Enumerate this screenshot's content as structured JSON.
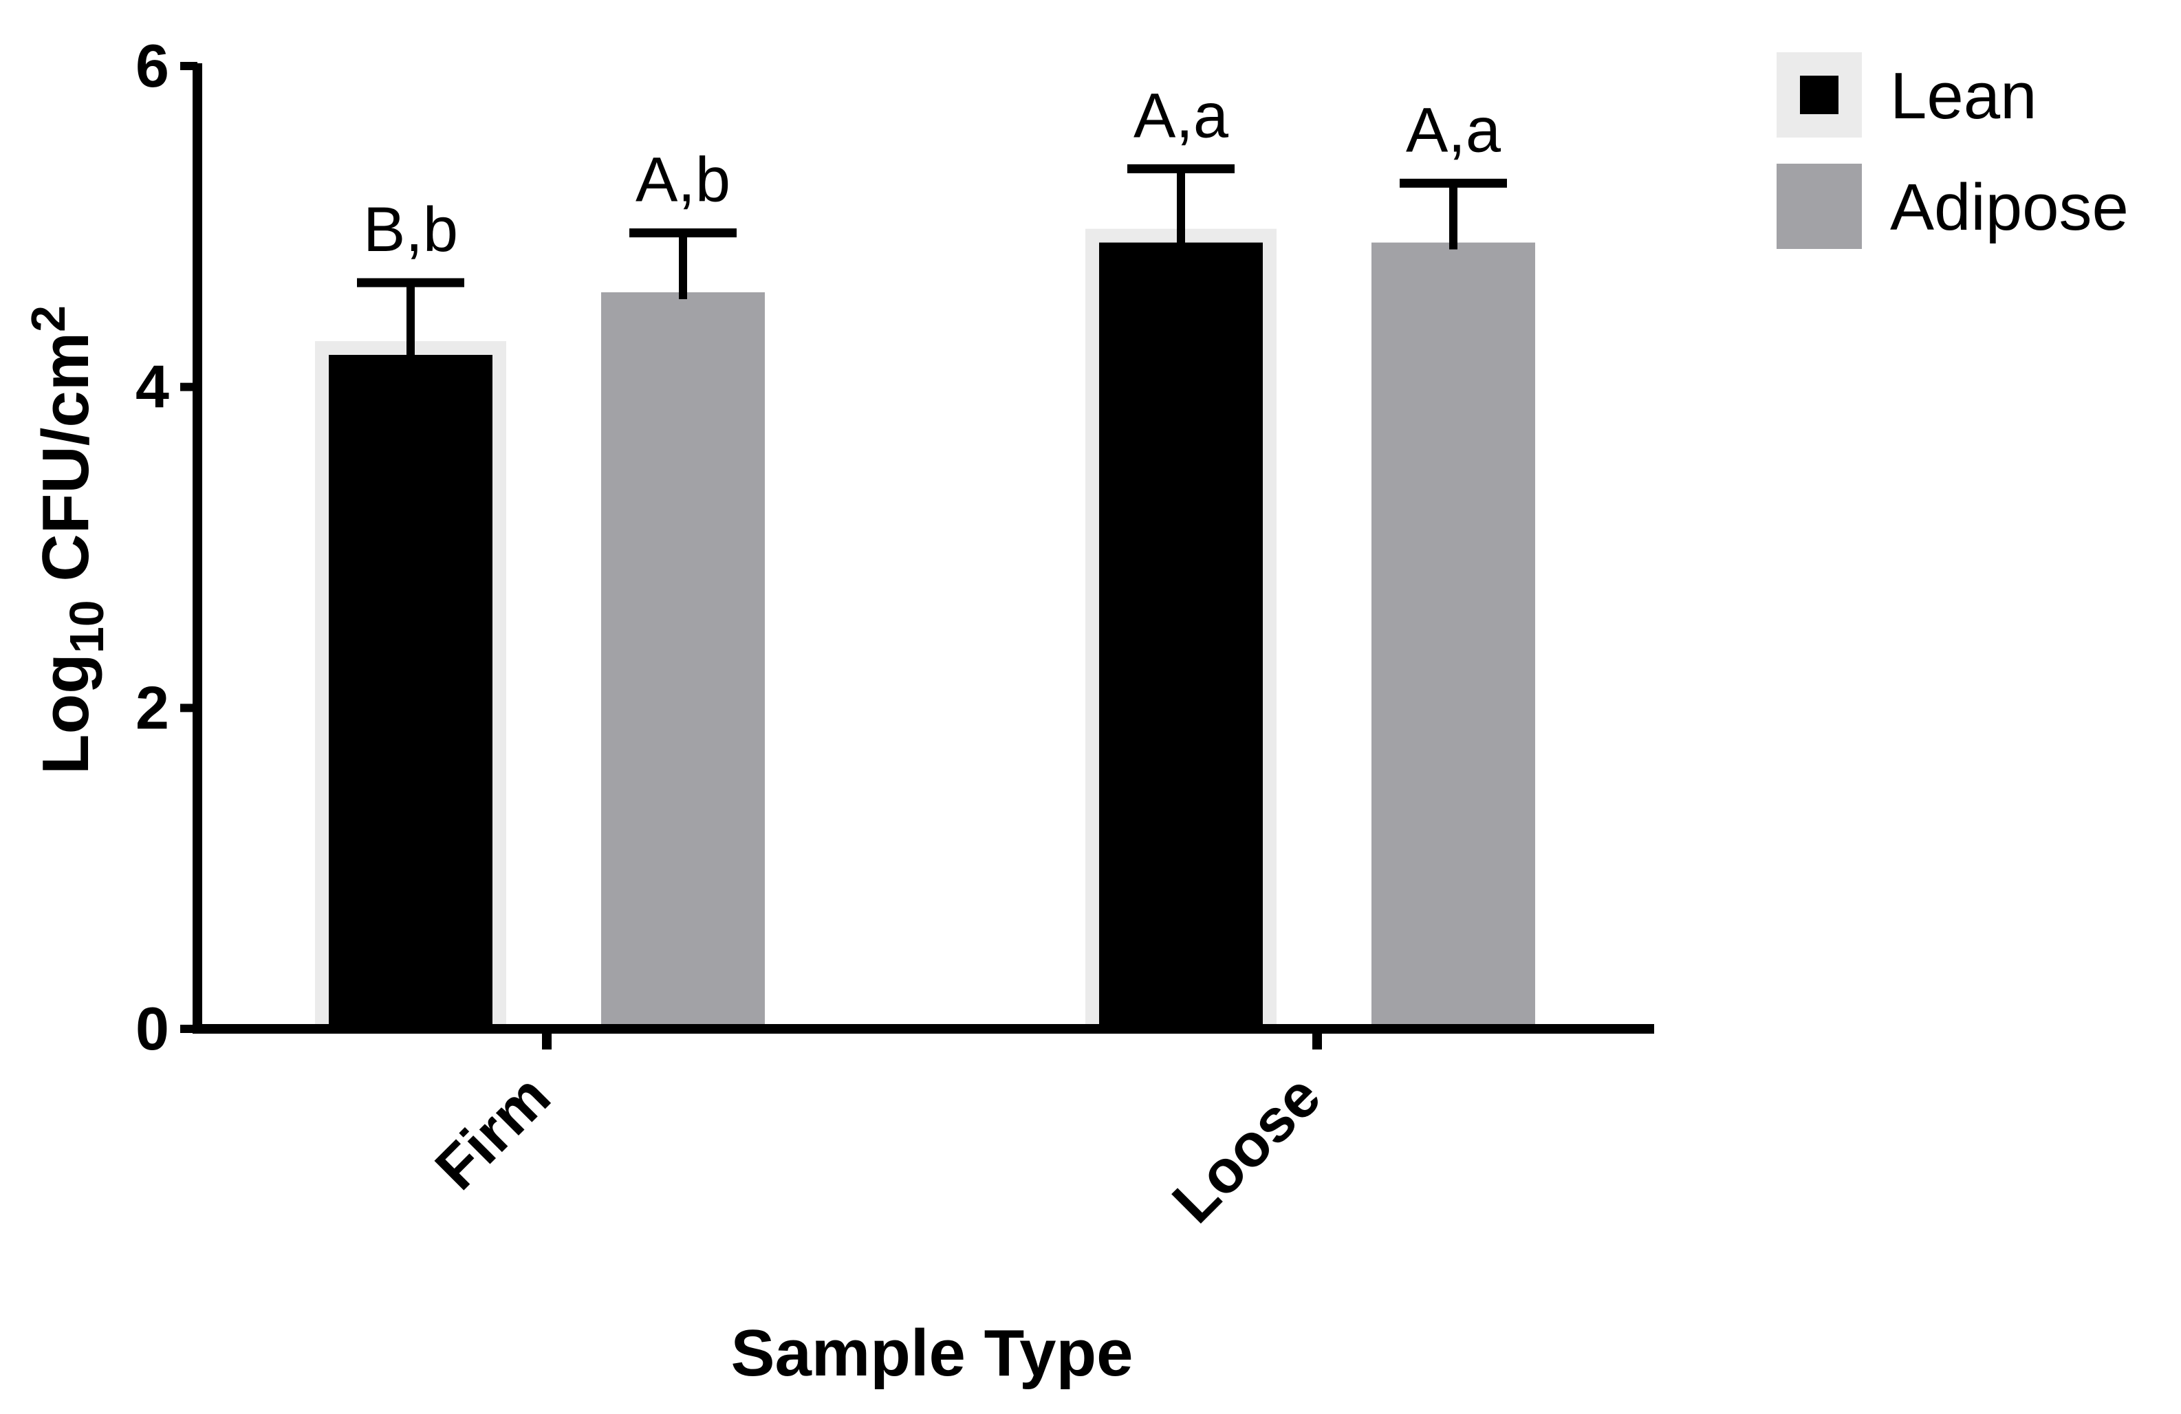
{
  "chart_data": {
    "type": "bar",
    "categories": [
      "Firm",
      "Loose"
    ],
    "series": [
      {
        "name": "Lean",
        "values": [
          4.2,
          4.9
        ],
        "errors": [
          0.45,
          0.46
        ],
        "labels": [
          "B,b",
          "A,a"
        ],
        "color": "#000000"
      },
      {
        "name": "Adipose",
        "values": [
          4.59,
          4.9
        ],
        "errors": [
          0.37,
          0.37
        ],
        "labels": [
          "A,b",
          "A,a"
        ],
        "color": "#a2a2a6"
      }
    ],
    "xlabel": "Sample Type",
    "ylabel": {
      "base": "Log",
      "sub": "10",
      "unit": " CFU/cm",
      "sup": "2"
    },
    "ylim": [
      0,
      6
    ],
    "yticks": [
      "0",
      "2",
      "4",
      "6"
    ],
    "grid": false,
    "legend_position": "top-right",
    "highlight_color": "#ebebeb"
  }
}
